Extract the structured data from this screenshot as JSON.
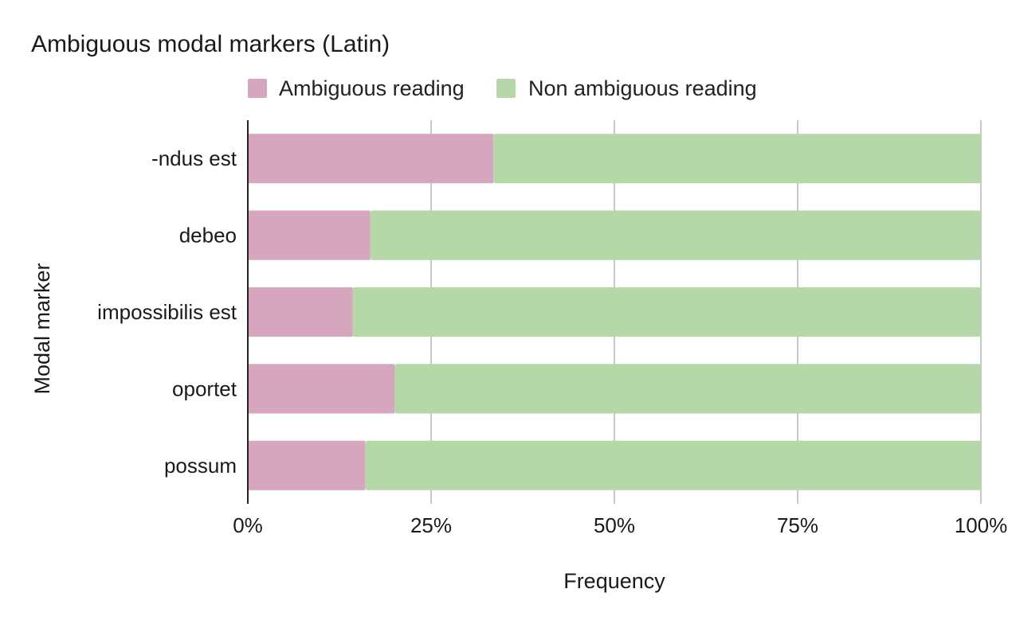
{
  "chart_data": {
    "type": "bar",
    "orientation": "horizontal",
    "stacked": "percent",
    "title": "Ambiguous modal markers (Latin)",
    "xlabel": "Frequency",
    "ylabel": "Modal marker",
    "categories": [
      "-ndus est",
      "debeo",
      "impossibilis est",
      "oportet",
      "possum"
    ],
    "series": [
      {
        "name": "Ambiguous reading",
        "color": "#d5a6bd",
        "values": [
          33.5,
          16.7,
          14.3,
          20.0,
          16.0
        ]
      },
      {
        "name": "Non ambiguous reading",
        "color": "#b6d7a8",
        "values": [
          66.5,
          83.3,
          85.7,
          80.0,
          84.0
        ]
      }
    ],
    "xticks": [
      "0%",
      "25%",
      "50%",
      "75%",
      "100%"
    ],
    "xlim": [
      0,
      100
    ],
    "grid": true,
    "legend_position": "top"
  }
}
